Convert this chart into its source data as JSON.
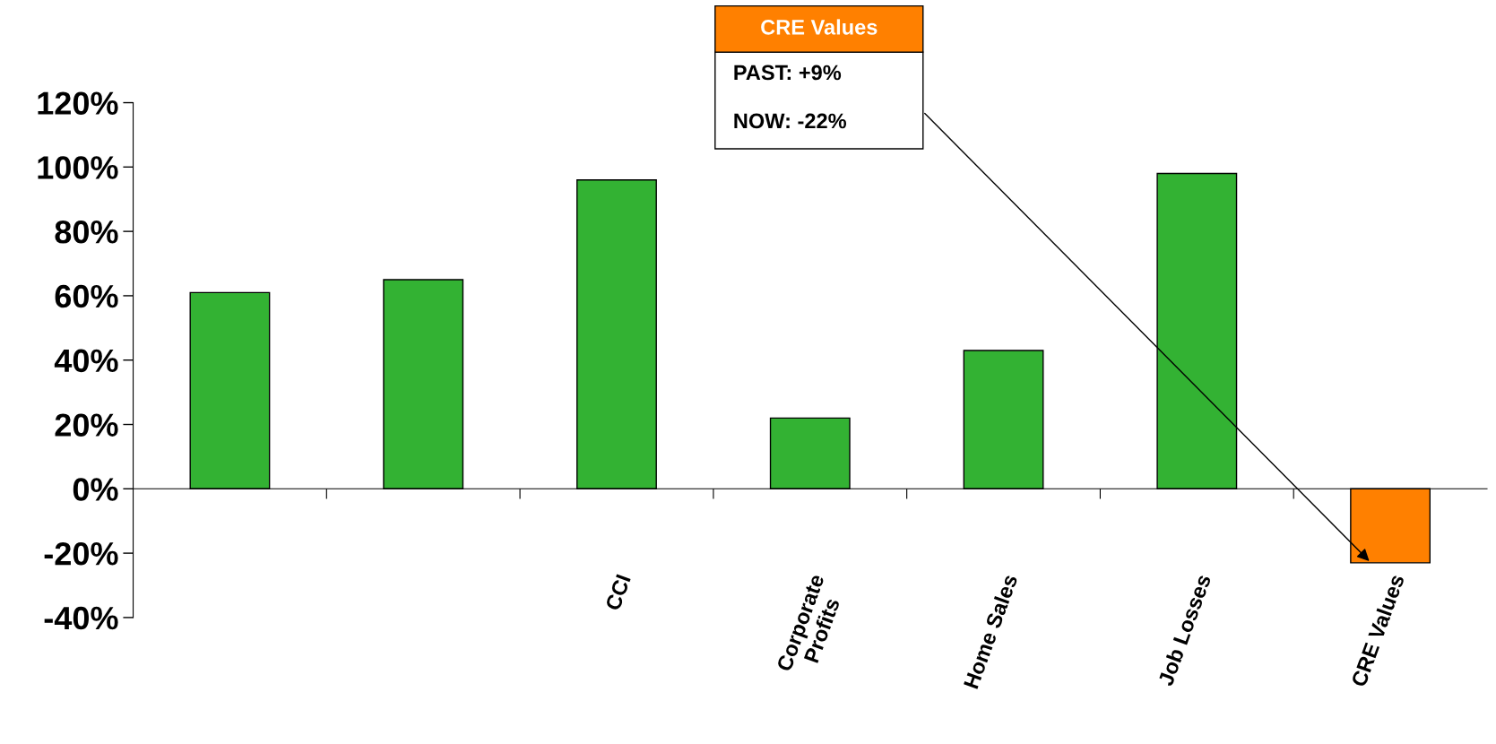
{
  "chart_data": {
    "type": "bar",
    "categories": [
      null,
      null,
      "CCI",
      "Corporate\nProfits",
      "Home Sales",
      "Job Losses",
      "CRE Values"
    ],
    "values": [
      61,
      65,
      96,
      22,
      43,
      98,
      -23
    ],
    "colors": [
      "#33b233",
      "#33b233",
      "#33b233",
      "#33b233",
      "#33b233",
      "#33b233",
      "#ff8000"
    ],
    "ylim": [
      -40,
      120
    ],
    "yticks": [
      {
        "value": -40,
        "label": "-40%"
      },
      {
        "value": -20,
        "label": "-20%"
      },
      {
        "value": 0,
        "label": "0%"
      },
      {
        "value": 20,
        "label": "20%"
      },
      {
        "value": 40,
        "label": "40%"
      },
      {
        "value": 60,
        "label": "60%"
      },
      {
        "value": 80,
        "label": "80%"
      },
      {
        "value": 100,
        "label": "100%"
      },
      {
        "value": 120,
        "label": "120%"
      }
    ],
    "legend": false,
    "annotations": [
      "CRE Values",
      "PAST: +9%",
      "NOW: -22%"
    ]
  }
}
